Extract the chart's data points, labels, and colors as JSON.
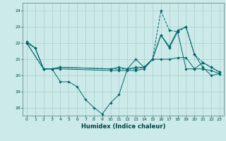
{
  "title": "",
  "xlabel": "Humidex (Indice chaleur)",
  "background_color": "#cceaea",
  "grid_color": "#aacccc",
  "line_color": "#006666",
  "xlim": [
    -0.5,
    23.5
  ],
  "ylim": [
    17.5,
    24.5
  ],
  "yticks": [
    18,
    19,
    20,
    21,
    22,
    23,
    24
  ],
  "xticks": [
    0,
    1,
    2,
    3,
    4,
    5,
    6,
    7,
    8,
    9,
    10,
    11,
    12,
    13,
    14,
    15,
    16,
    17,
    18,
    19,
    20,
    21,
    22,
    23
  ],
  "series": [
    {
      "x": [
        0,
        1,
        2,
        3,
        4,
        10,
        11,
        12,
        13,
        14,
        15,
        16,
        17,
        18,
        19,
        20,
        21,
        22,
        23
      ],
      "y": [
        22.1,
        21.7,
        20.4,
        20.4,
        20.5,
        20.4,
        20.5,
        20.4,
        20.5,
        20.5,
        21.0,
        22.5,
        21.7,
        22.7,
        20.4,
        20.4,
        20.8,
        20.5,
        20.2
      ],
      "style": "-",
      "marker": "D",
      "markersize": 1.8
    },
    {
      "x": [
        0,
        1,
        2,
        3,
        4,
        5,
        6,
        7,
        8,
        9,
        10,
        11,
        12,
        13,
        14,
        15,
        16,
        17,
        18,
        19,
        20,
        21,
        22,
        23
      ],
      "y": [
        22.0,
        21.7,
        20.4,
        20.4,
        19.6,
        19.6,
        19.3,
        18.5,
        18.0,
        17.6,
        18.3,
        18.8,
        20.4,
        21.0,
        20.5,
        21.0,
        22.5,
        21.8,
        22.8,
        23.0,
        21.3,
        20.5,
        20.0,
        20.1
      ],
      "style": "-",
      "marker": "D",
      "markersize": 1.8
    },
    {
      "x": [
        0,
        2,
        3,
        4,
        10,
        11,
        12,
        13,
        14,
        15,
        16,
        17,
        18,
        19,
        20,
        21,
        22,
        23
      ],
      "y": [
        22.0,
        20.4,
        20.4,
        20.5,
        20.4,
        20.4,
        20.4,
        20.4,
        20.5,
        21.0,
        24.0,
        22.8,
        22.7,
        23.0,
        21.3,
        20.8,
        20.5,
        20.2
      ],
      "style": "--",
      "marker": "D",
      "markersize": 1.8
    },
    {
      "x": [
        0,
        2,
        3,
        4,
        10,
        11,
        12,
        13,
        14,
        15,
        16,
        17,
        18,
        19,
        20,
        21,
        22,
        23
      ],
      "y": [
        22.0,
        20.4,
        20.4,
        20.4,
        20.3,
        20.3,
        20.3,
        20.3,
        20.4,
        21.0,
        21.0,
        21.0,
        21.1,
        21.1,
        20.4,
        20.4,
        20.3,
        20.1
      ],
      "style": "-",
      "marker": "D",
      "markersize": 1.8
    }
  ]
}
